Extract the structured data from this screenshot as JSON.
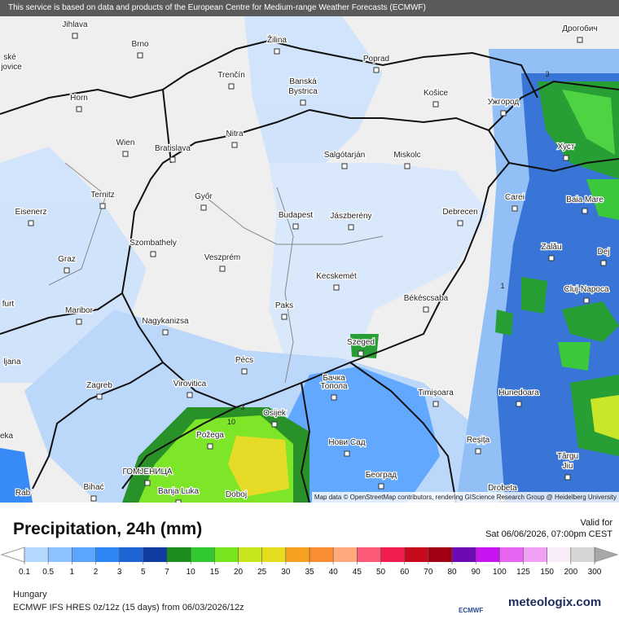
{
  "header": {
    "notice": "This service is based on data and products of the European Centre for Medium-range Weather Forecasts (ECMWF)"
  },
  "map": {
    "cities": [
      "Jihlava",
      "Brno",
      "Žilina",
      "Poprad",
      "Дрогобич",
      "Trenčín",
      "Banská",
      "Bystrica",
      "Košice",
      "Ужгород",
      "Horn",
      "Nitra",
      "Wien",
      "Bratislava",
      "Хуст",
      "Salgótarján",
      "Miskolc",
      "Ternitz",
      "Győr",
      "Carei",
      "Baia Mare",
      "Eisenerz",
      "Budapest",
      "Jászberény",
      "Debrecen",
      "Szombathely",
      "Zalău",
      "Dej",
      "Graz",
      "Veszprém",
      "Kecskemét",
      "Cluj-Napoca",
      "Maribor",
      "Paks",
      "Békéscsaba",
      "Nagykanizsa",
      "Szeged",
      "Pécs",
      "Бачка",
      "Топола",
      "Virovitica",
      "Zagreb",
      "Timișoara",
      "Hunedoara",
      "Osijek",
      "Požega",
      "Нови Сад",
      "Reșița",
      "ГОМЈЕНИЦА",
      "Târgu",
      "Jiu",
      "Banja Luka",
      "Bihać",
      "Београд",
      "Doboj",
      "Drobeta",
      "ské",
      "jovice",
      "furt",
      "ljana",
      "eka",
      "Rab"
    ],
    "contour_labels": [
      "3",
      "3",
      "10",
      "1"
    ],
    "attribution": "Map data © OpenStreetMap contributors, rendering GIScience Research Group @ Heidelberg University"
  },
  "legend": {
    "title": "Precipitation, 24h (mm)",
    "valid_label": "Valid for",
    "valid_time": "Sat 06/06/2026, 07:00pm CEST",
    "ticks": [
      0.1,
      0.5,
      1,
      2,
      3,
      5,
      7,
      10,
      15,
      20,
      25,
      30,
      35,
      40,
      45,
      50,
      60,
      70,
      80,
      90,
      100,
      125,
      150,
      200,
      300
    ],
    "colors": [
      "#b3d9ff",
      "#8cc2ff",
      "#5aa5ff",
      "#2f86f7",
      "#1e64d2",
      "#0f3ca0",
      "#1e8c1e",
      "#32c832",
      "#78e61e",
      "#c8e61e",
      "#e6dc1e",
      "#f5a01e",
      "#fa8c32",
      "#ffaa7d",
      "#fa5a78",
      "#f01e50",
      "#c80a1e",
      "#a00014",
      "#6e0ab4",
      "#c814f0",
      "#e664f0",
      "#f0a0f5",
      "#f8ecf8",
      "#d6d6d6"
    ],
    "under_color": "#ffffff",
    "over_color": "#a8a8a8"
  },
  "footer": {
    "region": "Hungary",
    "model": "ECMWF IFS HRES 0z/12z (15 days) from 06/03/2026/12z",
    "ecmwf_logo": "ECMWF",
    "brand": "meteologix.com"
  }
}
